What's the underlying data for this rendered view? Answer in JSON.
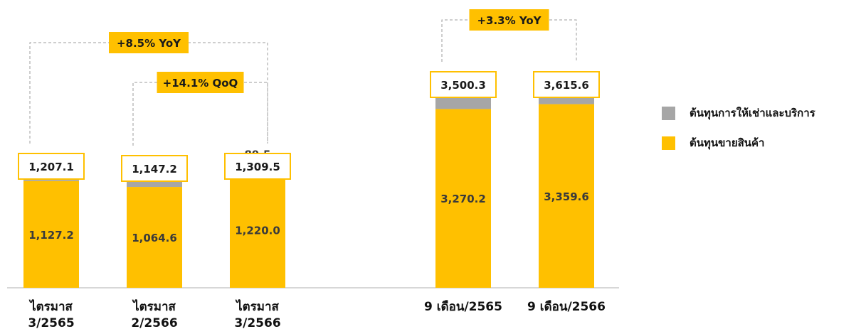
{
  "chart_data": {
    "type": "bar",
    "stacked": true,
    "colors": {
      "goods": "#FFC000",
      "rental": "#A6A6A6",
      "badge": "#FFC000",
      "box_border": "#FFC000"
    },
    "groups": [
      {
        "ylim": [
          0,
          3000
        ],
        "categories": [
          [
            "ไตรมาส",
            "3/2565"
          ],
          [
            "ไตรมาส",
            "2/2566"
          ],
          [
            "ไตรมาส",
            "3/2566"
          ]
        ],
        "series": [
          {
            "name": "ต้นทุนขายสินค้า",
            "values": [
              1127.2,
              1064.6,
              1220.0
            ],
            "labels": [
              "1,127.2",
              "1,064.6",
              "1,220.0"
            ]
          },
          {
            "name": "ต้นทุนการให้เช่าและบริการ",
            "values": [
              79.9,
              82.6,
              89.5
            ],
            "labels": [
              "79.9",
              "82.6",
              "89.5"
            ]
          }
        ],
        "totals": [
          "1,207.1",
          "1,147.2",
          "1,309.5"
        ],
        "annotations": [
          {
            "text": "+8.5% YoY",
            "from": 0,
            "to": 2
          },
          {
            "text": "+14.1% QoQ",
            "from": 1,
            "to": 2
          }
        ]
      },
      {
        "ylim": [
          0,
          5200
        ],
        "categories": [
          [
            "9 เดือน/2565"
          ],
          [
            "9 เดือน/2566"
          ]
        ],
        "series": [
          {
            "name": "ต้นทุนขายสินค้า",
            "values": [
              3270.2,
              3359.6
            ],
            "labels": [
              "3,270.2",
              "3,359.6"
            ]
          },
          {
            "name": "ต้นทุนการให้เช่าและบริการ",
            "values": [
              230.1,
              256.0
            ],
            "labels": [
              "230.1",
              "256.0"
            ]
          }
        ],
        "totals": [
          "3,500.3",
          "3,615.6"
        ],
        "annotations": [
          {
            "text": "+3.3% YoY",
            "from": 0,
            "to": 1
          }
        ]
      }
    ],
    "legend": {
      "position": "right",
      "items": [
        {
          "name": "ต้นทุนการให้เช่าและบริการ",
          "color": "#A6A6A6"
        },
        {
          "name": "ต้นทุนขายสินค้า",
          "color": "#FFC000"
        }
      ]
    }
  }
}
